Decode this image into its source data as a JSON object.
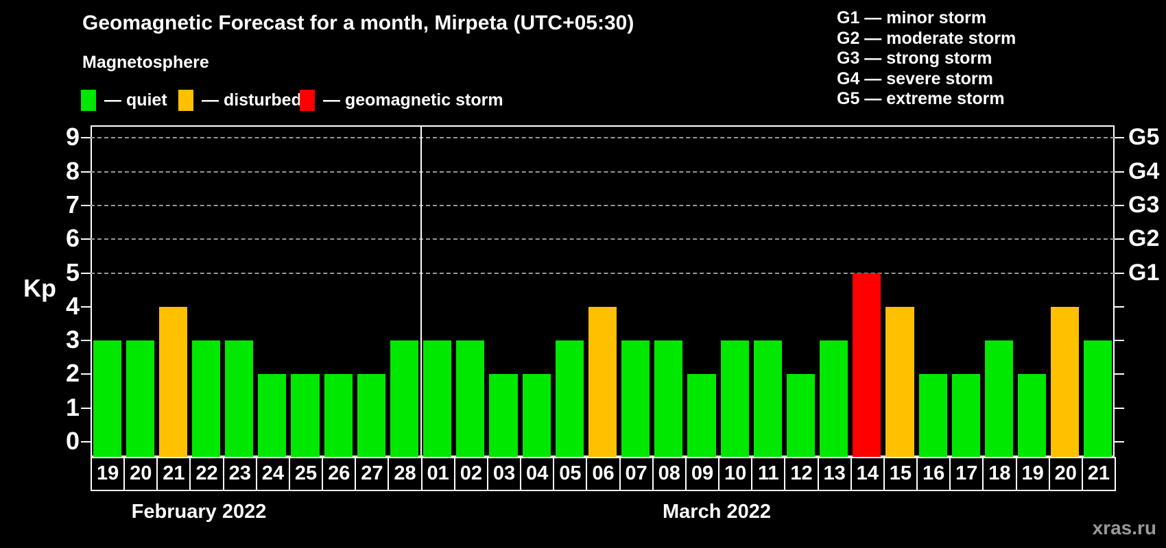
{
  "title": "Geomagnetic Forecast for a month, Mirpeta (UTC+05:30)",
  "subtitle": "Magnetosphere",
  "watermark": "xras.ru",
  "colors": {
    "quiet": "#00e800",
    "disturbed": "#ffc000",
    "storm": "#ff0000",
    "background": "#000000",
    "text": "#ffffff",
    "grid": "#999999",
    "watermark": "#999999"
  },
  "legend": {
    "items": [
      {
        "status": "quiet",
        "label": "— quiet",
        "color": "#00e800"
      },
      {
        "status": "disturbed",
        "label": "— disturbed",
        "color": "#ffc000"
      },
      {
        "status": "storm",
        "label": "— geomagnetic storm",
        "color": "#ff0000"
      }
    ]
  },
  "g_scale_legend": {
    "items": [
      {
        "label": "G1 — minor storm"
      },
      {
        "label": "G2 — moderate storm"
      },
      {
        "label": "G3 — strong storm"
      },
      {
        "label": "G4 — severe storm"
      },
      {
        "label": "G5 — extreme storm"
      }
    ]
  },
  "chart_data": {
    "type": "bar",
    "title": "Geomagnetic Forecast for a month, Mirpeta (UTC+05:30)",
    "ylabel": "Kp",
    "xlabel": "",
    "ylim": [
      0,
      9.5
    ],
    "yticks": [
      0,
      1,
      2,
      3,
      4,
      5,
      6,
      7,
      8,
      9
    ],
    "gridlines_at_kp": [
      5,
      6,
      7,
      8,
      9
    ],
    "grid": "dashed horizontal at G-storm levels only",
    "legend_position": "top-left and top-right",
    "right_axis": [
      {
        "kp": 5,
        "label": "G1"
      },
      {
        "kp": 6,
        "label": "G2"
      },
      {
        "kp": 7,
        "label": "G3"
      },
      {
        "kp": 8,
        "label": "G4"
      },
      {
        "kp": 9,
        "label": "G5"
      }
    ],
    "groups": [
      {
        "month_label": "February 2022",
        "bars": [
          {
            "date": "19",
            "kp": 3,
            "status": "quiet"
          },
          {
            "date": "20",
            "kp": 3,
            "status": "quiet"
          },
          {
            "date": "21",
            "kp": 4,
            "status": "disturbed"
          },
          {
            "date": "22",
            "kp": 3,
            "status": "quiet"
          },
          {
            "date": "23",
            "kp": 3,
            "status": "quiet"
          },
          {
            "date": "24",
            "kp": 2,
            "status": "quiet"
          },
          {
            "date": "25",
            "kp": 2,
            "status": "quiet"
          },
          {
            "date": "26",
            "kp": 2,
            "status": "quiet"
          },
          {
            "date": "27",
            "kp": 2,
            "status": "quiet"
          },
          {
            "date": "28",
            "kp": 3,
            "status": "quiet"
          }
        ]
      },
      {
        "month_label": "March 2022",
        "bars": [
          {
            "date": "01",
            "kp": 3,
            "status": "quiet"
          },
          {
            "date": "02",
            "kp": 3,
            "status": "quiet"
          },
          {
            "date": "03",
            "kp": 2,
            "status": "quiet"
          },
          {
            "date": "04",
            "kp": 2,
            "status": "quiet"
          },
          {
            "date": "05",
            "kp": 3,
            "status": "quiet"
          },
          {
            "date": "06",
            "kp": 4,
            "status": "disturbed"
          },
          {
            "date": "07",
            "kp": 3,
            "status": "quiet"
          },
          {
            "date": "08",
            "kp": 3,
            "status": "quiet"
          },
          {
            "date": "09",
            "kp": 2,
            "status": "quiet"
          },
          {
            "date": "10",
            "kp": 3,
            "status": "quiet"
          },
          {
            "date": "11",
            "kp": 3,
            "status": "quiet"
          },
          {
            "date": "12",
            "kp": 2,
            "status": "quiet"
          },
          {
            "date": "13",
            "kp": 3,
            "status": "quiet"
          },
          {
            "date": "14",
            "kp": 5,
            "status": "storm"
          },
          {
            "date": "15",
            "kp": 4,
            "status": "disturbed"
          },
          {
            "date": "16",
            "kp": 2,
            "status": "quiet"
          },
          {
            "date": "17",
            "kp": 2,
            "status": "quiet"
          },
          {
            "date": "18",
            "kp": 3,
            "status": "quiet"
          },
          {
            "date": "19",
            "kp": 2,
            "status": "quiet"
          },
          {
            "date": "20",
            "kp": 4,
            "status": "disturbed"
          },
          {
            "date": "21",
            "kp": 3,
            "status": "quiet"
          }
        ]
      }
    ]
  }
}
